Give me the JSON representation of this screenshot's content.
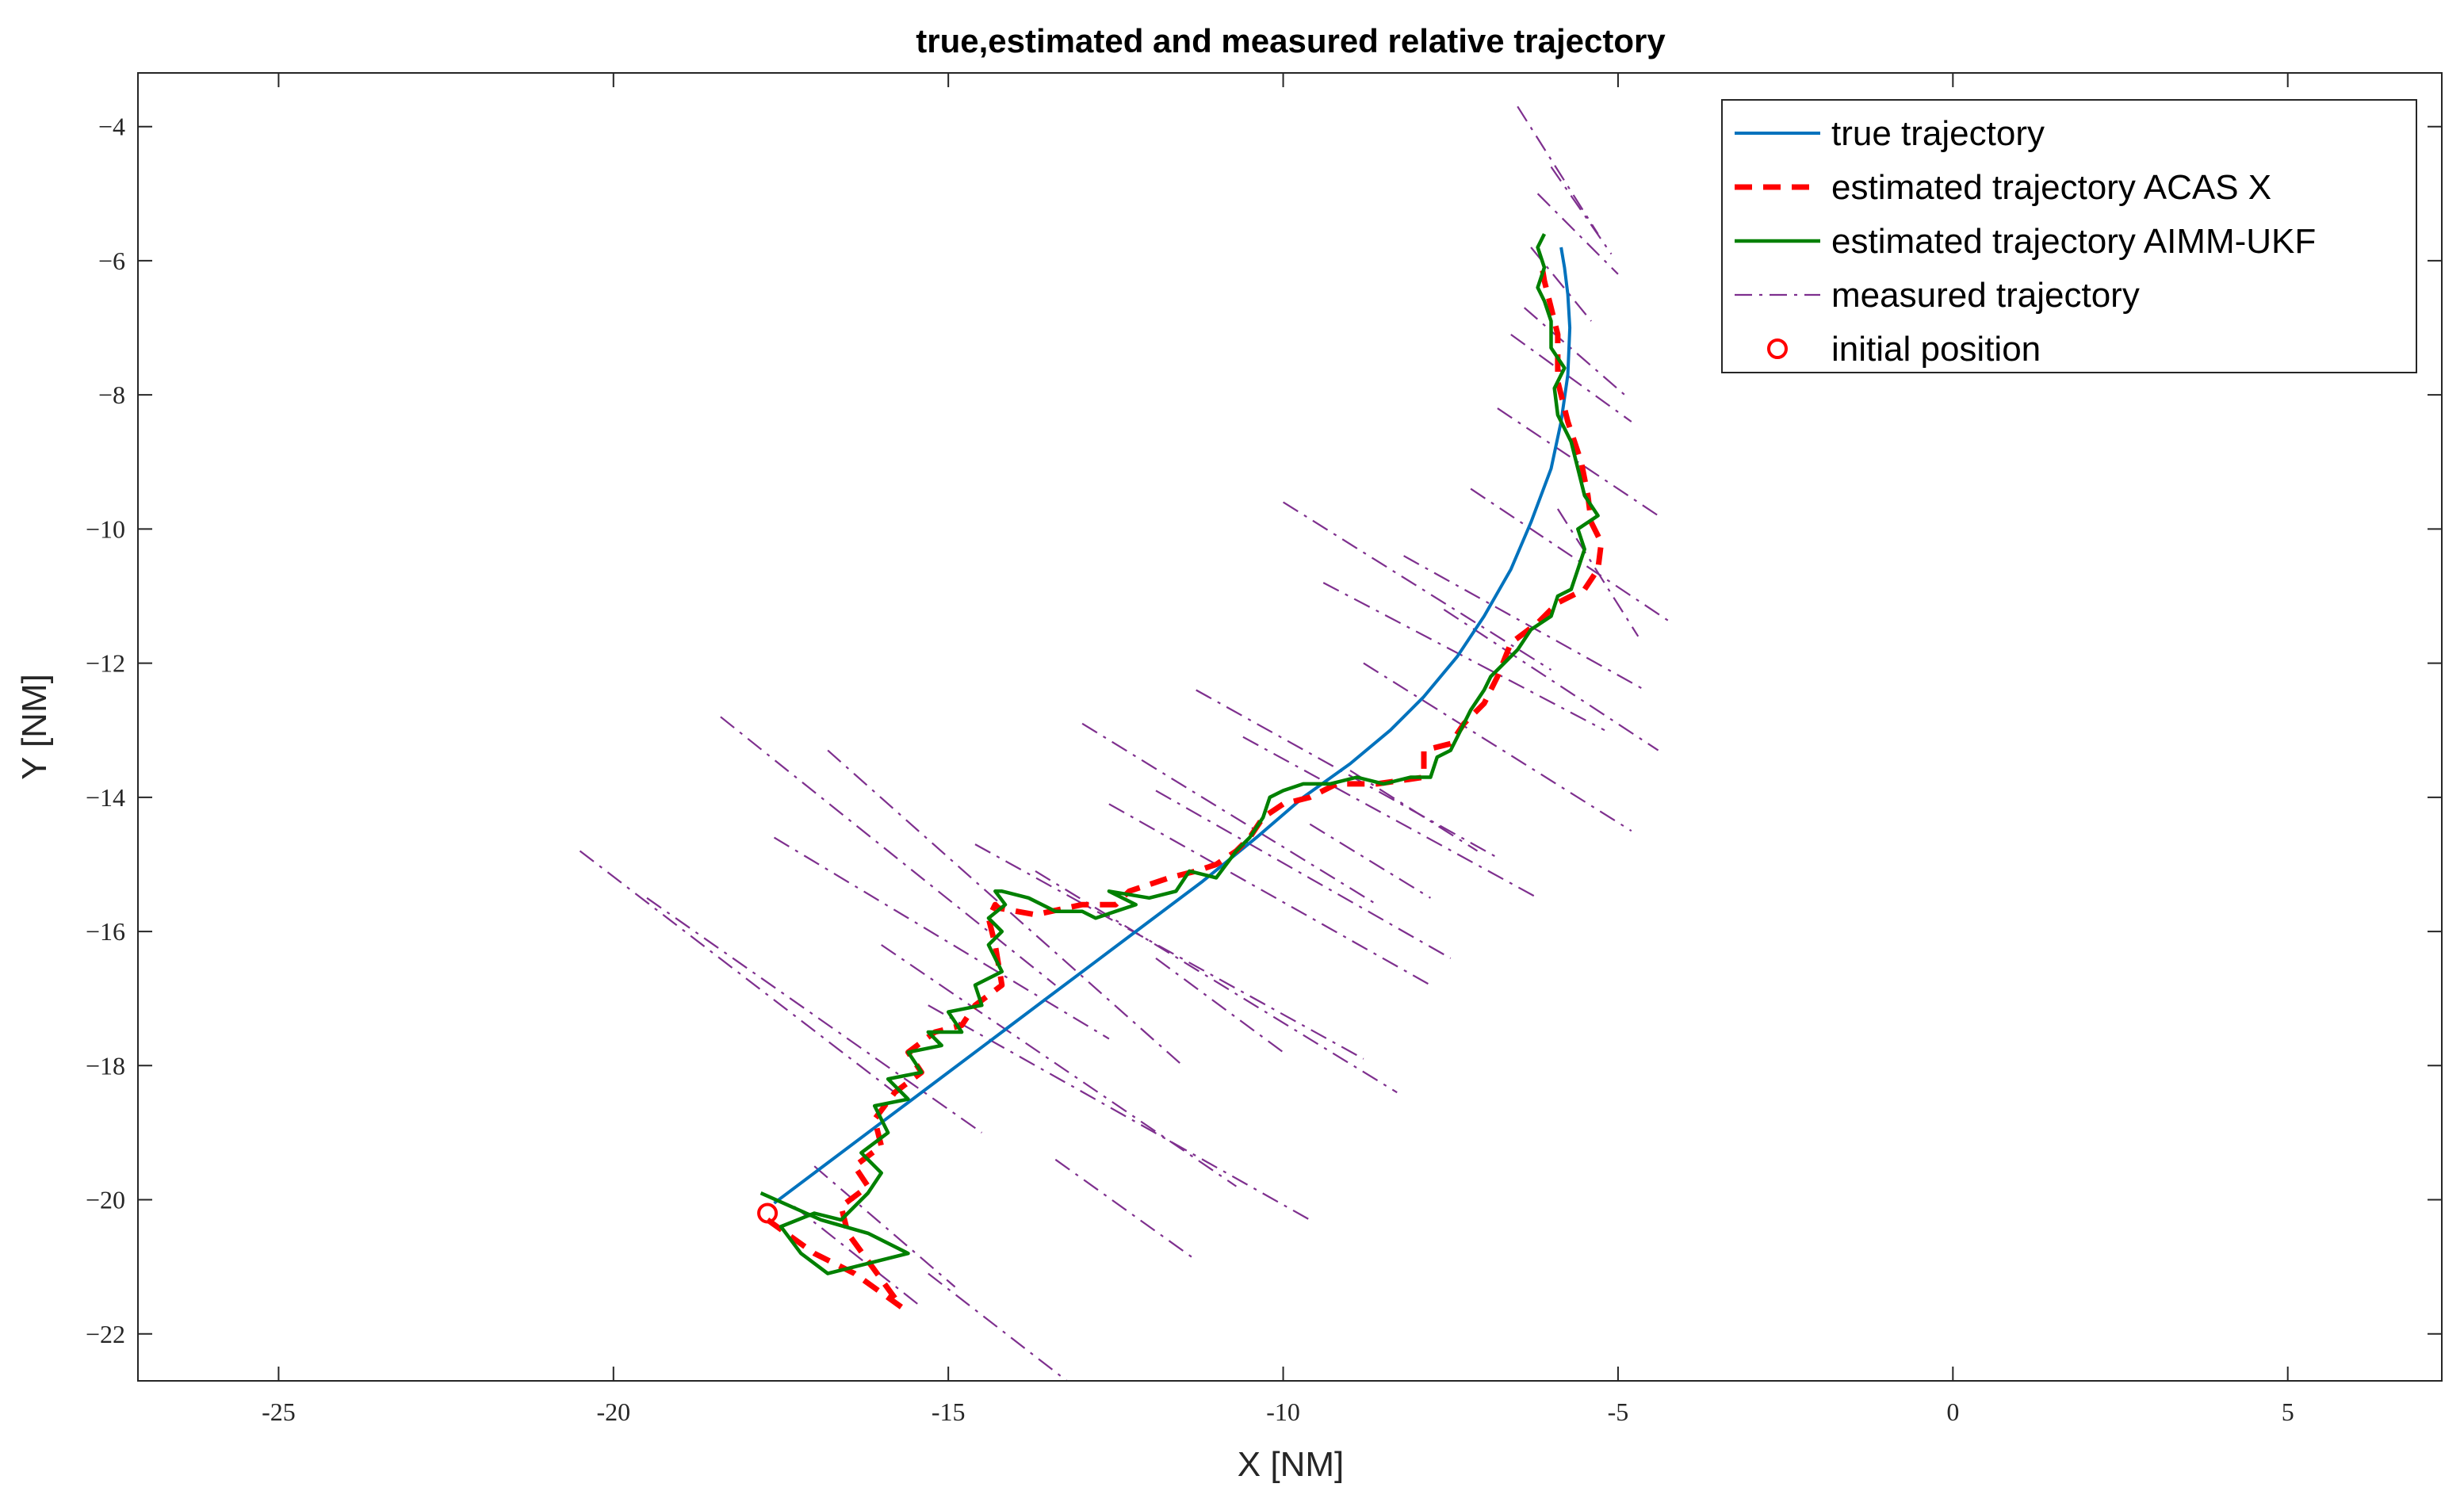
{
  "chart_data": {
    "type": "line",
    "title": "true,estimated and measured relative trajectory",
    "xlabel": "X [NM]",
    "ylabel": "Y [NM]",
    "xlim": [
      -27.1,
      7.3
    ],
    "ylim": [
      -22.7,
      -3.2
    ],
    "xticks": [
      -25,
      -20,
      -15,
      -10,
      -5,
      0,
      5
    ],
    "xtick_labels": [
      "-25",
      "-20",
      "-15",
      "-10",
      "-5",
      "0",
      "5"
    ],
    "yticks": [
      -22,
      -20,
      -18,
      -16,
      -14,
      -12,
      -10,
      -8,
      -6,
      -4
    ],
    "ytick_labels": [
      "−22",
      "−20",
      "−18",
      "−16",
      "−14",
      "−12",
      "−10",
      "−8",
      "−6",
      "−4"
    ],
    "grid": false,
    "legend_position": "top-right",
    "colors": {
      "true": "#0072BD",
      "acas": "#FF0000",
      "aimm": "#008000",
      "measured": "#7E2F8E",
      "initial": "#FF0000"
    },
    "legend": [
      {
        "key": "true",
        "label": "true trajectory"
      },
      {
        "key": "acas",
        "label": "estimated trajectory ACAS X"
      },
      {
        "key": "aimm",
        "label": "estimated trajectory AIMM-UKF"
      },
      {
        "key": "measured",
        "label": "measured trajectory"
      },
      {
        "key": "initial",
        "label": "initial position"
      }
    ],
    "series": [
      {
        "name": "true trajectory",
        "key": "true",
        "style": "solid",
        "x": [
          -17.6,
          -16.8,
          -16.0,
          -15.2,
          -14.4,
          -13.6,
          -12.8,
          -12.0,
          -11.2,
          -10.4,
          -9.7,
          -9.0,
          -8.4,
          -7.9,
          -7.4,
          -7.0,
          -6.6,
          -6.3,
          -6.0,
          -5.85,
          -5.75,
          -5.72,
          -5.75,
          -5.8,
          -5.85
        ],
        "y": [
          -20.05,
          -19.45,
          -18.85,
          -18.25,
          -17.65,
          -17.05,
          -16.45,
          -15.85,
          -15.25,
          -14.6,
          -14.0,
          -13.5,
          -13.0,
          -12.5,
          -11.9,
          -11.3,
          -10.6,
          -9.9,
          -9.1,
          -8.4,
          -7.7,
          -7.0,
          -6.5,
          -6.1,
          -5.8
        ]
      },
      {
        "name": "estimated trajectory ACAS X",
        "key": "acas",
        "style": "dashed",
        "x": [
          -17.7,
          -17.0,
          -16.4,
          -15.7,
          -16.5,
          -16.6,
          -16.2,
          -16.4,
          -16.0,
          -16.1,
          -15.8,
          -15.4,
          -15.6,
          -15.2,
          -14.8,
          -14.6,
          -14.2,
          -14.3,
          -14.4,
          -14.3,
          -14.25,
          -13.7,
          -13.0,
          -12.5,
          -12.3,
          -11.7,
          -11.3,
          -11.0,
          -10.7,
          -10.5,
          -10.3,
          -10.0,
          -9.6,
          -9.2,
          -8.6,
          -7.9,
          -7.9,
          -7.5,
          -7.3,
          -7.0,
          -6.8,
          -6.6,
          -6.2,
          -5.9,
          -5.5,
          -5.3,
          -5.25,
          -5.4,
          -5.45,
          -5.55,
          -5.75,
          -5.9,
          -5.9,
          -6.0,
          -6.1,
          -6.15
        ],
        "y": [
          -20.3,
          -20.8,
          -21.1,
          -21.6,
          -20.5,
          -20.1,
          -19.8,
          -19.5,
          -19.2,
          -18.8,
          -18.4,
          -18.1,
          -17.8,
          -17.5,
          -17.4,
          -17.1,
          -16.8,
          -16.2,
          -15.8,
          -15.6,
          -15.65,
          -15.75,
          -15.6,
          -15.6,
          -15.4,
          -15.2,
          -15.1,
          -15.0,
          -14.8,
          -14.6,
          -14.3,
          -14.1,
          -14.0,
          -13.8,
          -13.8,
          -13.7,
          -13.3,
          -13.2,
          -12.9,
          -12.6,
          -12.2,
          -11.7,
          -11.4,
          -11.1,
          -10.9,
          -10.6,
          -10.2,
          -9.9,
          -9.5,
          -9.0,
          -8.4,
          -7.8,
          -7.1,
          -6.7,
          -6.3,
          -6.0
        ]
      },
      {
        "name": "estimated trajectory AIMM-UKF",
        "key": "aimm",
        "style": "solid",
        "x": [
          -17.8,
          -16.9,
          -16.2,
          -15.6,
          -16.8,
          -17.2,
          -17.5,
          -17.0,
          -16.6,
          -16.2,
          -16.0,
          -16.3,
          -15.9,
          -16.1,
          -15.6,
          -15.9,
          -15.4,
          -15.6,
          -15.1,
          -15.3,
          -14.8,
          -15.0,
          -14.5,
          -14.6,
          -14.2,
          -14.4,
          -14.2,
          -14.4,
          -14.15,
          -14.3,
          -14.2,
          -13.8,
          -13.4,
          -13.0,
          -12.8,
          -12.2,
          -12.6,
          -12.0,
          -11.6,
          -11.4,
          -11.0,
          -10.7,
          -10.5,
          -10.3,
          -10.2,
          -10.0,
          -9.7,
          -9.3,
          -8.9,
          -8.5,
          -8.1,
          -7.8,
          -7.7,
          -7.5,
          -7.4,
          -7.3,
          -7.2,
          -7.0,
          -6.9,
          -6.7,
          -6.5,
          -6.3,
          -6.0,
          -5.9,
          -5.7,
          -5.6,
          -5.5,
          -5.6,
          -5.3,
          -5.5,
          -5.6,
          -5.7,
          -5.9,
          -5.95,
          -5.8,
          -6.0,
          -6.0,
          -6.1,
          -6.2,
          -6.1,
          -6.2,
          -6.1
        ],
        "y": [
          -19.9,
          -20.3,
          -20.5,
          -20.8,
          -21.1,
          -20.8,
          -20.4,
          -20.2,
          -20.3,
          -19.9,
          -19.6,
          -19.3,
          -19.0,
          -18.6,
          -18.5,
          -18.2,
          -18.1,
          -17.8,
          -17.7,
          -17.5,
          -17.5,
          -17.2,
          -17.1,
          -16.8,
          -16.6,
          -16.2,
          -16.0,
          -15.8,
          -15.6,
          -15.4,
          -15.4,
          -15.5,
          -15.7,
          -15.7,
          -15.8,
          -15.6,
          -15.4,
          -15.5,
          -15.4,
          -15.1,
          -15.2,
          -14.8,
          -14.6,
          -14.3,
          -14.0,
          -13.9,
          -13.8,
          -13.8,
          -13.7,
          -13.8,
          -13.7,
          -13.7,
          -13.4,
          -13.3,
          -13.1,
          -12.9,
          -12.7,
          -12.4,
          -12.2,
          -12.0,
          -11.8,
          -11.5,
          -11.3,
          -11.0,
          -10.9,
          -10.6,
          -10.3,
          -10.0,
          -9.8,
          -9.5,
          -9.1,
          -8.7,
          -8.3,
          -7.9,
          -7.6,
          -7.3,
          -6.9,
          -6.6,
          -6.4,
          -6.1,
          -5.8,
          -5.6
        ]
      }
    ],
    "measured_segments": [
      {
        "x": [
          -20.5,
          -15.8
        ],
        "y": [
          -14.8,
          -18.4
        ]
      },
      {
        "x": [
          -19.5,
          -14.5
        ],
        "y": [
          -15.5,
          -19.0
        ]
      },
      {
        "x": [
          -18.4,
          -13.4
        ],
        "y": [
          -12.8,
          -16.8
        ]
      },
      {
        "x": [
          -17.6,
          -12.6
        ],
        "y": [
          -14.6,
          -17.6
        ]
      },
      {
        "x": [
          -16.8,
          -11.5
        ],
        "y": [
          -13.3,
          -18.0
        ]
      },
      {
        "x": [
          -16.0,
          -10.7
        ],
        "y": [
          -16.2,
          -19.8
        ]
      },
      {
        "x": [
          -15.3,
          -9.6
        ],
        "y": [
          -17.1,
          -20.3
        ]
      },
      {
        "x": [
          -14.6,
          -8.8
        ],
        "y": [
          -14.7,
          -17.9
        ]
      },
      {
        "x": [
          -13.7,
          -8.3
        ],
        "y": [
          -15.1,
          -18.4
        ]
      },
      {
        "x": [
          -13.0,
          -8.6
        ],
        "y": [
          -12.9,
          -15.6
        ]
      },
      {
        "x": [
          -12.6,
          -7.8
        ],
        "y": [
          -14.1,
          -16.8
        ]
      },
      {
        "x": [
          -11.9,
          -7.5
        ],
        "y": [
          -13.9,
          -16.4
        ]
      },
      {
        "x": [
          -11.3,
          -6.8
        ],
        "y": [
          -12.4,
          -14.9
        ]
      },
      {
        "x": [
          -10.6,
          -6.2
        ],
        "y": [
          -13.1,
          -15.5
        ]
      },
      {
        "x": [
          -10.0,
          -6.0
        ],
        "y": [
          -9.6,
          -12.1
        ]
      },
      {
        "x": [
          -9.4,
          -5.2
        ],
        "y": [
          -10.8,
          -13.0
        ]
      },
      {
        "x": [
          -8.8,
          -4.8
        ],
        "y": [
          -12.0,
          -14.5
        ]
      },
      {
        "x": [
          -8.2,
          -4.6
        ],
        "y": [
          -10.4,
          -12.4
        ]
      },
      {
        "x": [
          -7.6,
          -4.4
        ],
        "y": [
          -11.2,
          -13.3
        ]
      },
      {
        "x": [
          -7.2,
          -4.2
        ],
        "y": [
          -9.4,
          -11.4
        ]
      },
      {
        "x": [
          -6.8,
          -4.4
        ],
        "y": [
          -8.2,
          -9.8
        ]
      },
      {
        "x": [
          -6.6,
          -4.8
        ],
        "y": [
          -7.1,
          -8.4
        ]
      },
      {
        "x": [
          -6.4,
          -4.9
        ],
        "y": [
          -6.7,
          -8.0
        ]
      },
      {
        "x": [
          -6.2,
          -5.0
        ],
        "y": [
          -5.0,
          -6.2
        ]
      },
      {
        "x": [
          -6.5,
          -5.3
        ],
        "y": [
          -3.7,
          -5.6
        ]
      },
      {
        "x": [
          -6.0,
          -5.1
        ],
        "y": [
          -4.6,
          -5.9
        ]
      },
      {
        "x": [
          -6.3,
          -5.4
        ],
        "y": [
          -5.8,
          -6.9
        ]
      },
      {
        "x": [
          -5.9,
          -4.7
        ],
        "y": [
          -9.7,
          -11.6
        ]
      },
      {
        "x": [
          -17.3,
          -15.4
        ],
        "y": [
          -20.1,
          -21.6
        ]
      },
      {
        "x": [
          -17.0,
          -14.9
        ],
        "y": [
          -19.5,
          -21.3
        ]
      },
      {
        "x": [
          -15.3,
          -13.1
        ],
        "y": [
          -21.1,
          -22.8
        ]
      },
      {
        "x": [
          -13.4,
          -11.3
        ],
        "y": [
          -19.4,
          -20.9
        ]
      },
      {
        "x": [
          -11.9,
          -10.0
        ],
        "y": [
          -16.4,
          -17.8
        ]
      },
      {
        "x": [
          -9.6,
          -7.8
        ],
        "y": [
          -14.4,
          -15.5
        ]
      },
      {
        "x": [
          -9.0,
          -7.1
        ],
        "y": [
          -13.6,
          -14.8
        ]
      }
    ],
    "initial_position": {
      "x": -17.7,
      "y": -20.2
    }
  }
}
